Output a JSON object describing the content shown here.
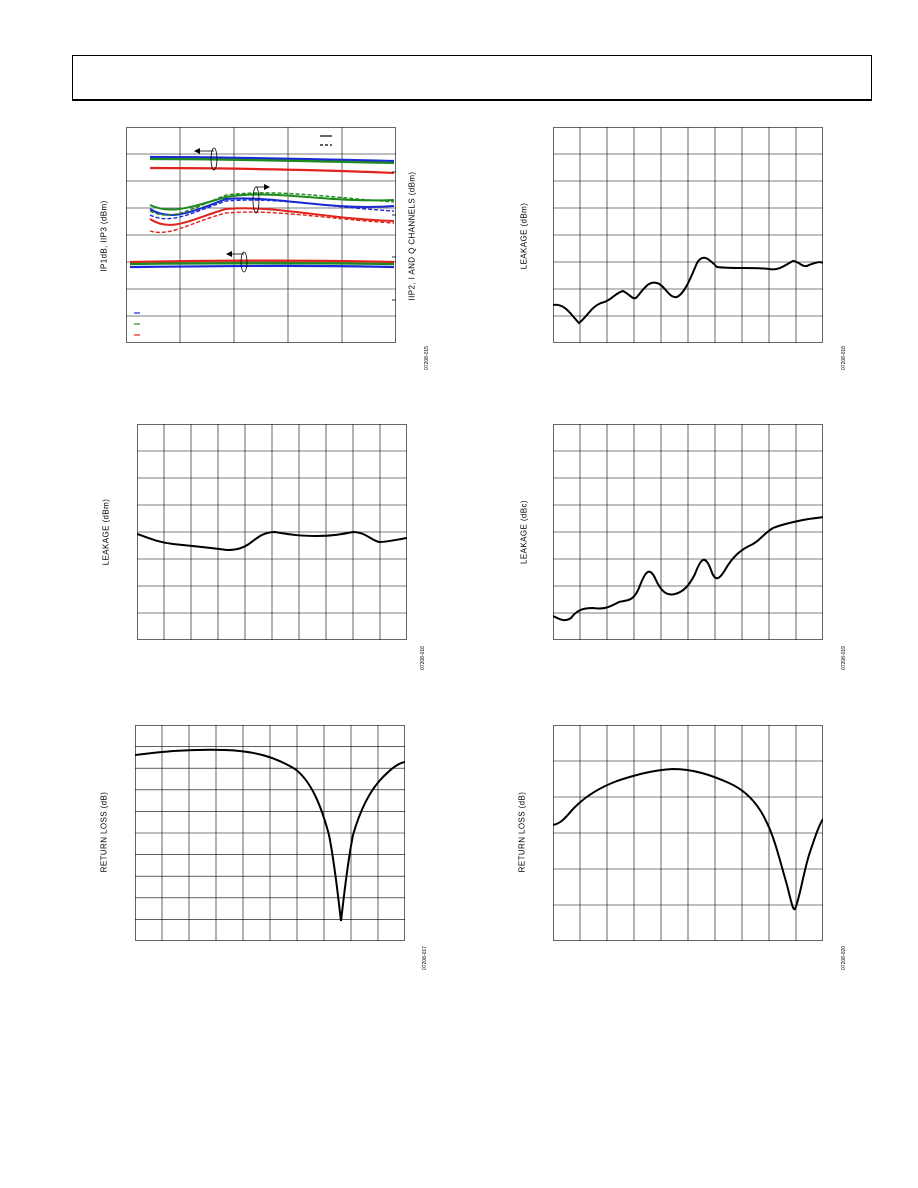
{
  "page": {
    "header": ""
  },
  "figures": [
    {
      "id": "ip1db-iip3",
      "ylabel": "IP1dB, IIP3 (dBm)",
      "ylabel_right": "IIP2, I AND Q CHANNELS (dBm)",
      "figure_id": "07208-015",
      "colors": {
        "blue": "#1a2bd6",
        "green": "#1e8a1e",
        "red": "#e0231c"
      }
    },
    {
      "id": "leakage-1",
      "ylabel": "LEAKAGE (dBm)",
      "figure_id": "07208-018"
    },
    {
      "id": "leakage-2",
      "ylabel": "LEAKAGE (dBm)",
      "figure_id": "07208-016"
    },
    {
      "id": "leakage-3",
      "ylabel": "LEAKAGE (dBc)",
      "figure_id": "07208-019"
    },
    {
      "id": "return-loss-1",
      "ylabel": "RETURN LOSS (dB)",
      "figure_id": "07208-017"
    },
    {
      "id": "return-loss-2",
      "ylabel": "RETURN LOSS (dB)",
      "figure_id": "07208-020"
    }
  ]
}
